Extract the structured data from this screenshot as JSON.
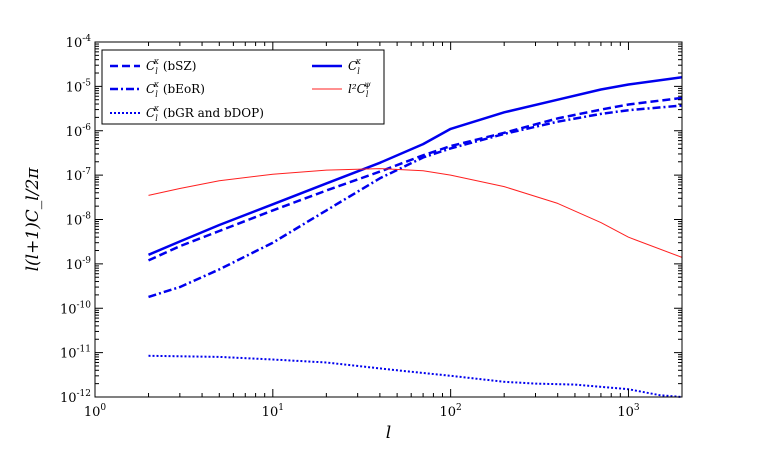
{
  "chart_data": {
    "type": "line",
    "xscale": "log",
    "yscale": "log",
    "xlim": [
      1,
      2000
    ],
    "ylim": [
      1e-12,
      0.0001
    ],
    "xlabel": "l",
    "ylabel": "l(l+1)C_l/2π",
    "x_ticks": [
      {
        "base": "10",
        "exp": "0"
      },
      {
        "base": "10",
        "exp": "1"
      },
      {
        "base": "10",
        "exp": "2"
      },
      {
        "base": "10",
        "exp": "3"
      }
    ],
    "y_ticks": [
      {
        "base": "10",
        "exp": "-12"
      },
      {
        "base": "10",
        "exp": "-11"
      },
      {
        "base": "10",
        "exp": "-10"
      },
      {
        "base": "10",
        "exp": "-9"
      },
      {
        "base": "10",
        "exp": "-8"
      },
      {
        "base": "10",
        "exp": "-7"
      },
      {
        "base": "10",
        "exp": "-6"
      },
      {
        "base": "10",
        "exp": "-5"
      },
      {
        "base": "10",
        "exp": "-4"
      }
    ],
    "legend_position": "top-left",
    "series": [
      {
        "name": "C_l^κ (bSZ)",
        "label_main": "C",
        "label_sub": "l",
        "label_sup": "κ",
        "label_tail": " (bSZ)",
        "color": "#0000ee",
        "style": "dashed",
        "x": [
          2,
          3,
          5,
          10,
          20,
          40,
          70,
          100,
          200,
          400,
          700,
          1000,
          2000
        ],
        "y": [
          1.2e-09,
          2.5e-09,
          5.5e-09,
          1.6e-08,
          4.5e-08,
          1.2e-07,
          2.8e-07,
          4.5e-07,
          9e-07,
          1.9e-06,
          3e-06,
          3.9e-06,
          5.5e-06
        ]
      },
      {
        "name": "C_l^κ (bEoR)",
        "label_main": "C",
        "label_sub": "l",
        "label_sup": "κ",
        "label_tail": " (bEoR)",
        "color": "#0000ee",
        "style": "dashdot",
        "x": [
          2,
          3,
          5,
          10,
          20,
          40,
          70,
          100,
          200,
          400,
          700,
          1000,
          2000
        ],
        "y": [
          1.8e-10,
          3e-10,
          7.5e-10,
          3e-09,
          1.6e-08,
          8.5e-08,
          2.5e-07,
          4e-07,
          8.5e-07,
          1.6e-06,
          2.4e-06,
          2.9e-06,
          3.7e-06
        ]
      },
      {
        "name": "C_l^κ (bGR and bDOP)",
        "label_main": "C",
        "label_sub": "l",
        "label_sup": "κ",
        "label_tail": " (bGR and bDOP)",
        "color": "#0000ee",
        "style": "dotted",
        "x": [
          2,
          5,
          10,
          20,
          50,
          100,
          200,
          300,
          500,
          1000,
          1500,
          2000
        ],
        "y": [
          8.5e-12,
          8e-12,
          7e-12,
          6e-12,
          4e-12,
          3e-12,
          2.2e-12,
          2e-12,
          1.9e-12,
          1.5e-12,
          1.1e-12,
          1e-12
        ]
      },
      {
        "name": "C_l^κ",
        "label_main": "C",
        "label_sub": "l",
        "label_sup": "κ",
        "label_tail": "",
        "color": "#0000ee",
        "style": "solid",
        "x": [
          2,
          3,
          5,
          10,
          20,
          40,
          70,
          100,
          200,
          400,
          700,
          1000,
          2000
        ],
        "y": [
          1.6e-09,
          3.2e-09,
          7.5e-09,
          2.2e-08,
          6.5e-08,
          1.9e-07,
          5e-07,
          1.1e-06,
          2.6e-06,
          5e-06,
          8.5e-06,
          1.1e-05,
          1.6e-05
        ]
      },
      {
        "name": "l^2 C_l^ψ",
        "label_main": "l²C",
        "label_sub": "l",
        "label_sup": "ψ",
        "label_tail": "",
        "color": "#ff2020",
        "style": "thin",
        "x": [
          2,
          3,
          5,
          10,
          20,
          40,
          70,
          100,
          200,
          400,
          700,
          1000,
          2000
        ],
        "y": [
          3.5e-08,
          5e-08,
          7.5e-08,
          1.05e-07,
          1.3e-07,
          1.4e-07,
          1.25e-07,
          1e-07,
          5.5e-08,
          2.3e-08,
          8.5e-09,
          4e-09,
          1.4e-09
        ]
      }
    ]
  }
}
